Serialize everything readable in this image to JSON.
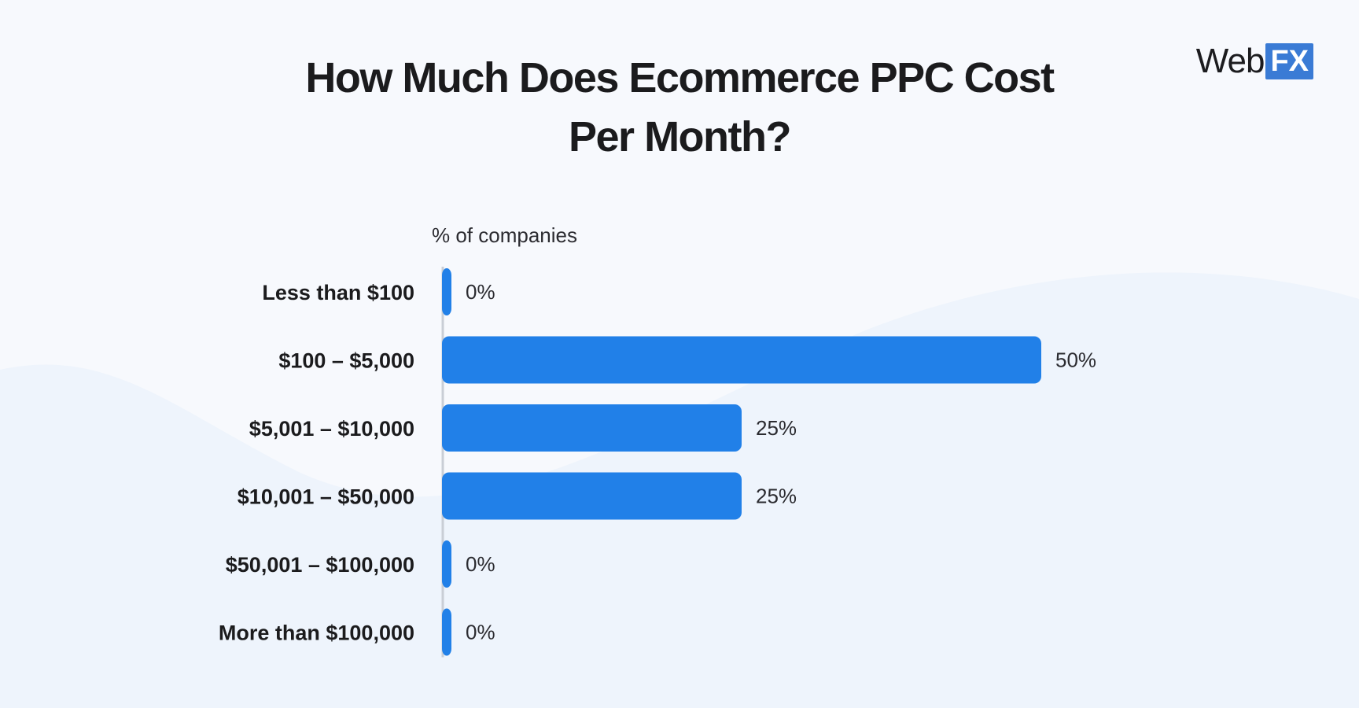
{
  "brand": {
    "name_part": "Web",
    "name_badge": "FX",
    "badge_color": "#3a7bd5"
  },
  "title_line1": "How Much Does Ecommerce PPC Cost",
  "title_line2": "Per Month?",
  "chart_data": {
    "type": "bar",
    "orientation": "horizontal",
    "title": "How Much Does Ecommerce PPC Cost Per Month?",
    "xlabel": "% of companies",
    "ylabel": "",
    "categories": [
      "Less than $100",
      "$100 – $5,000",
      "$5,001 – $10,000",
      "$10,001 – $50,000",
      "$50,001 – $100,000",
      "More than $100,000"
    ],
    "values": [
      0,
      50,
      25,
      25,
      0,
      0
    ],
    "value_labels": [
      "0%",
      "50%",
      "25%",
      "25%",
      "0%",
      "0%"
    ],
    "unit": "%",
    "xlim": [
      0,
      50
    ],
    "bar_color": "#2180e8",
    "axis_color": "#c9ced6",
    "grid": false,
    "legend": "none"
  }
}
